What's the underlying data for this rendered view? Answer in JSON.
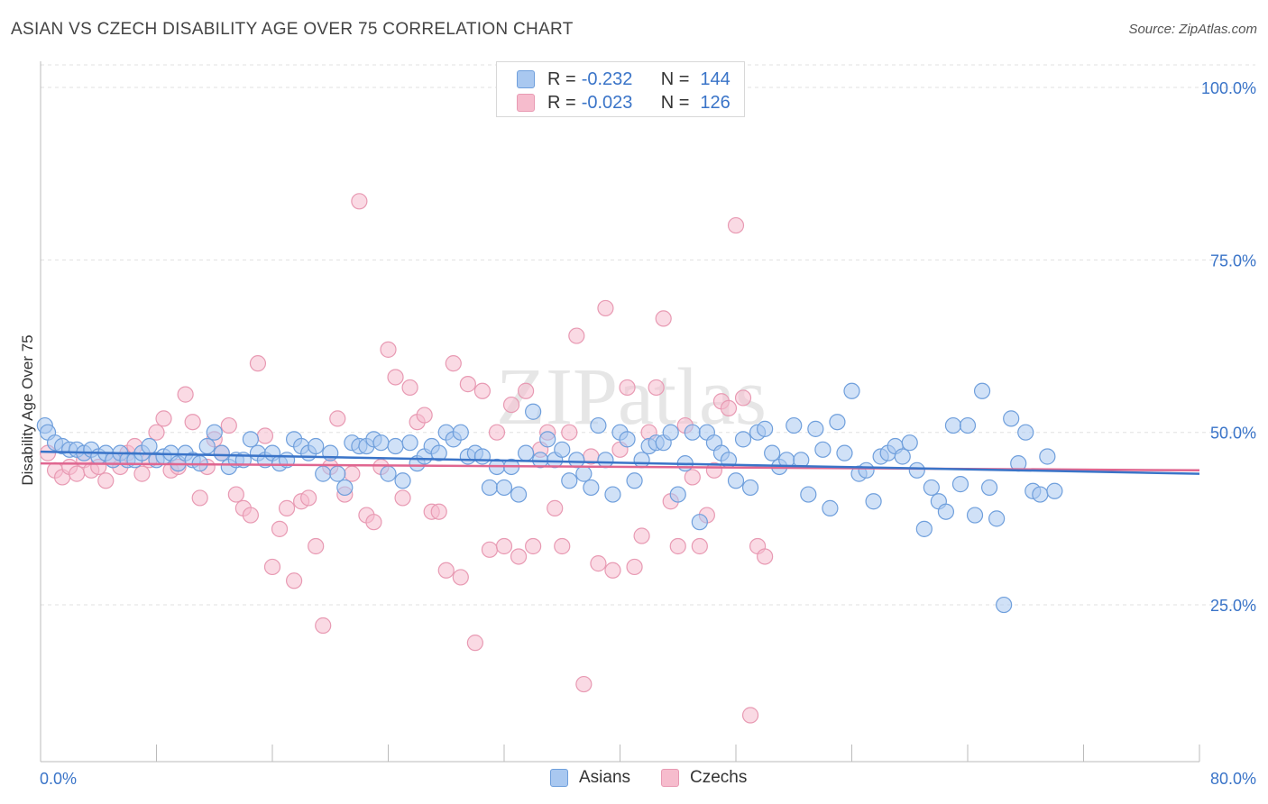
{
  "title": "ASIAN VS CZECH DISABILITY AGE OVER 75 CORRELATION CHART",
  "source": "Source: ZipAtlas.com",
  "watermark": "ZIPatlas",
  "legend": {
    "rows": [
      {
        "r_label": "R =",
        "r_value": "-0.232",
        "n_label": "N =",
        "n_value": "144"
      },
      {
        "r_label": "R =",
        "r_value": "-0.023",
        "n_label": "N =",
        "n_value": "126"
      }
    ]
  },
  "colors": {
    "asians_fill": "#a9c8f0",
    "asians_stroke": "#6f9fdc",
    "asians_line": "#3a74c8",
    "czechs_fill": "#f6bccd",
    "czechs_stroke": "#e89ab3",
    "czechs_line": "#e06690",
    "axis_label": "#3a74c8",
    "grid": "#e0e0e0"
  },
  "chart_data": {
    "type": "scatter",
    "title": "ASIAN VS CZECH DISABILITY AGE OVER 75 CORRELATION CHART",
    "xlabel": "",
    "ylabel": "Disability Age Over 75",
    "xlim": [
      0,
      80
    ],
    "ylim": [
      0,
      100
    ],
    "x_tick_labels": [
      "0.0%",
      "80.0%"
    ],
    "y_ticks": [
      25,
      50,
      75,
      100
    ],
    "y_tick_labels": [
      "25.0%",
      "50.0%",
      "75.0%",
      "100.0%"
    ],
    "grid": true,
    "legend_position": "top-center",
    "series": [
      {
        "name": "Asians",
        "r": -0.232,
        "n": 144,
        "trend": {
          "x": [
            0,
            80
          ],
          "y": [
            47.2,
            44.0
          ]
        },
        "points": [
          [
            0.3,
            51
          ],
          [
            0.5,
            50
          ],
          [
            1,
            48.5
          ],
          [
            1.5,
            48
          ],
          [
            2,
            47.5
          ],
          [
            2.5,
            47.5
          ],
          [
            3,
            47
          ],
          [
            3.5,
            47.5
          ],
          [
            4,
            46.5
          ],
          [
            4.5,
            47
          ],
          [
            5,
            46
          ],
          [
            5.5,
            47
          ],
          [
            6,
            46
          ],
          [
            6.5,
            46
          ],
          [
            7,
            47
          ],
          [
            7.5,
            48
          ],
          [
            8,
            46
          ],
          [
            8.5,
            46.5
          ],
          [
            9,
            47
          ],
          [
            9.5,
            45.5
          ],
          [
            10,
            47
          ],
          [
            10.5,
            46
          ],
          [
            11,
            45.5
          ],
          [
            11.5,
            48
          ],
          [
            12,
            50
          ],
          [
            12.5,
            47
          ],
          [
            13,
            45
          ],
          [
            13.5,
            46
          ],
          [
            14,
            46
          ],
          [
            14.5,
            49
          ],
          [
            15,
            47
          ],
          [
            15.5,
            46
          ],
          [
            16,
            47
          ],
          [
            16.5,
            45.5
          ],
          [
            17,
            46
          ],
          [
            17.5,
            49
          ],
          [
            18,
            48
          ],
          [
            18.5,
            47
          ],
          [
            19,
            48
          ],
          [
            19.5,
            44
          ],
          [
            20,
            47
          ],
          [
            20.5,
            44
          ],
          [
            21,
            42
          ],
          [
            21.5,
            48.5
          ],
          [
            22,
            48
          ],
          [
            22.5,
            48
          ],
          [
            23,
            49
          ],
          [
            23.5,
            48.5
          ],
          [
            24,
            44
          ],
          [
            24.5,
            48
          ],
          [
            25,
            43
          ],
          [
            25.5,
            48.5
          ],
          [
            26,
            45.5
          ],
          [
            26.5,
            46.5
          ],
          [
            27,
            48
          ],
          [
            27.5,
            47
          ],
          [
            28,
            50
          ],
          [
            28.5,
            49
          ],
          [
            29,
            50
          ],
          [
            29.5,
            46.5
          ],
          [
            30,
            47
          ],
          [
            30.5,
            46.5
          ],
          [
            31,
            42
          ],
          [
            31.5,
            45
          ],
          [
            32,
            42
          ],
          [
            32.5,
            45
          ],
          [
            33,
            41
          ],
          [
            33.5,
            47
          ],
          [
            34,
            53
          ],
          [
            34.5,
            46
          ],
          [
            35,
            49
          ],
          [
            35.5,
            46
          ],
          [
            36,
            47.5
          ],
          [
            36.5,
            43
          ],
          [
            37,
            46
          ],
          [
            37.5,
            44
          ],
          [
            38,
            42
          ],
          [
            38.5,
            51
          ],
          [
            39,
            46
          ],
          [
            39.5,
            41
          ],
          [
            40,
            50
          ],
          [
            40.5,
            49
          ],
          [
            41,
            43
          ],
          [
            41.5,
            46
          ],
          [
            42,
            48
          ],
          [
            42.5,
            48.5
          ],
          [
            43,
            48.5
          ],
          [
            43.5,
            50
          ],
          [
            44,
            41
          ],
          [
            44.5,
            45.5
          ],
          [
            45,
            50
          ],
          [
            45.5,
            37
          ],
          [
            46,
            50
          ],
          [
            46.5,
            48.5
          ],
          [
            47,
            47
          ],
          [
            47.5,
            46
          ],
          [
            48,
            43
          ],
          [
            48.5,
            49
          ],
          [
            49,
            42
          ],
          [
            49.5,
            50
          ],
          [
            50,
            50.5
          ],
          [
            50.5,
            47
          ],
          [
            51,
            45
          ],
          [
            51.5,
            46
          ],
          [
            52,
            51
          ],
          [
            52.5,
            46
          ],
          [
            53,
            41
          ],
          [
            53.5,
            50.5
          ],
          [
            54,
            47.5
          ],
          [
            54.5,
            39
          ],
          [
            55,
            51.5
          ],
          [
            55.5,
            47
          ],
          [
            56,
            56
          ],
          [
            56.5,
            44
          ],
          [
            57,
            44.5
          ],
          [
            57.5,
            40
          ],
          [
            58,
            46.5
          ],
          [
            58.5,
            47
          ],
          [
            59,
            48
          ],
          [
            59.5,
            46.5
          ],
          [
            60,
            48.5
          ],
          [
            60.5,
            44.5
          ],
          [
            61,
            36
          ],
          [
            61.5,
            42
          ],
          [
            62,
            40
          ],
          [
            62.5,
            38.5
          ],
          [
            63,
            51
          ],
          [
            63.5,
            42.5
          ],
          [
            64,
            51
          ],
          [
            64.5,
            38
          ],
          [
            65,
            56
          ],
          [
            65.5,
            42
          ],
          [
            66,
            37.5
          ],
          [
            66.5,
            25
          ],
          [
            67,
            52
          ],
          [
            67.5,
            45.5
          ],
          [
            68,
            50
          ],
          [
            68.5,
            41.5
          ],
          [
            69,
            41
          ],
          [
            69.5,
            46.5
          ],
          [
            70,
            41.5
          ]
        ]
      },
      {
        "name": "Czechs",
        "r": -0.023,
        "n": 126,
        "trend": {
          "x": [
            0,
            80
          ],
          "y": [
            45.5,
            44.5
          ]
        },
        "points": [
          [
            0.5,
            47
          ],
          [
            1,
            44.5
          ],
          [
            1.5,
            43.5
          ],
          [
            2,
            45
          ],
          [
            2.5,
            44
          ],
          [
            3,
            46
          ],
          [
            3.5,
            44.5
          ],
          [
            4,
            45
          ],
          [
            4.5,
            43
          ],
          [
            5,
            46
          ],
          [
            5.5,
            45
          ],
          [
            6,
            47
          ],
          [
            6.5,
            48
          ],
          [
            7,
            44
          ],
          [
            7.5,
            46
          ],
          [
            8,
            50
          ],
          [
            8.5,
            52
          ],
          [
            9,
            44.5
          ],
          [
            9.5,
            45
          ],
          [
            10,
            55.5
          ],
          [
            10.5,
            51.5
          ],
          [
            11,
            40.5
          ],
          [
            11.5,
            45
          ],
          [
            12,
            49
          ],
          [
            12.5,
            47
          ],
          [
            13,
            51
          ],
          [
            13.5,
            41
          ],
          [
            14,
            39
          ],
          [
            14.5,
            38
          ],
          [
            15,
            60
          ],
          [
            15.5,
            49.5
          ],
          [
            16,
            30.5
          ],
          [
            16.5,
            36
          ],
          [
            17,
            39
          ],
          [
            17.5,
            28.5
          ],
          [
            18,
            40
          ],
          [
            18.5,
            40.5
          ],
          [
            19,
            33.5
          ],
          [
            19.5,
            22
          ],
          [
            20,
            45
          ],
          [
            20.5,
            52
          ],
          [
            21,
            41
          ],
          [
            21.5,
            44
          ],
          [
            22,
            83.5
          ],
          [
            22.5,
            38
          ],
          [
            23,
            37
          ],
          [
            23.5,
            45
          ],
          [
            24,
            62
          ],
          [
            24.5,
            58
          ],
          [
            25,
            40.5
          ],
          [
            25.5,
            56.5
          ],
          [
            26,
            51.5
          ],
          [
            26.5,
            52.5
          ],
          [
            27,
            38.5
          ],
          [
            27.5,
            38.5
          ],
          [
            28,
            30
          ],
          [
            28.5,
            60
          ],
          [
            29,
            29
          ],
          [
            29.5,
            57
          ],
          [
            30,
            19.5
          ],
          [
            30.5,
            56
          ],
          [
            31,
            33
          ],
          [
            31.5,
            50
          ],
          [
            32,
            33.5
          ],
          [
            32.5,
            54
          ],
          [
            33,
            32
          ],
          [
            33.5,
            56
          ],
          [
            34,
            33.5
          ],
          [
            34.5,
            47.5
          ],
          [
            35,
            50
          ],
          [
            35.5,
            39
          ],
          [
            36,
            33.5
          ],
          [
            36.5,
            50
          ],
          [
            37,
            64
          ],
          [
            37.5,
            13.5
          ],
          [
            38,
            46.5
          ],
          [
            38.5,
            31
          ],
          [
            39,
            68
          ],
          [
            39.5,
            30
          ],
          [
            40,
            47.5
          ],
          [
            40.5,
            56.5
          ],
          [
            41,
            30.5
          ],
          [
            41.5,
            35
          ],
          [
            42,
            50
          ],
          [
            42.5,
            56.5
          ],
          [
            43,
            66.5
          ],
          [
            43.5,
            40
          ],
          [
            44,
            33.5
          ],
          [
            44.5,
            51
          ],
          [
            45,
            43.5
          ],
          [
            45.5,
            33.5
          ],
          [
            46,
            38
          ],
          [
            46.5,
            44.5
          ],
          [
            47,
            54.5
          ],
          [
            47.5,
            53.5
          ],
          [
            48,
            80
          ],
          [
            48.5,
            55
          ],
          [
            49,
            9
          ],
          [
            49.5,
            33.5
          ],
          [
            50,
            32
          ]
        ]
      }
    ]
  },
  "bottom_legend": [
    {
      "label": "Asians"
    },
    {
      "label": "Czechs"
    }
  ]
}
